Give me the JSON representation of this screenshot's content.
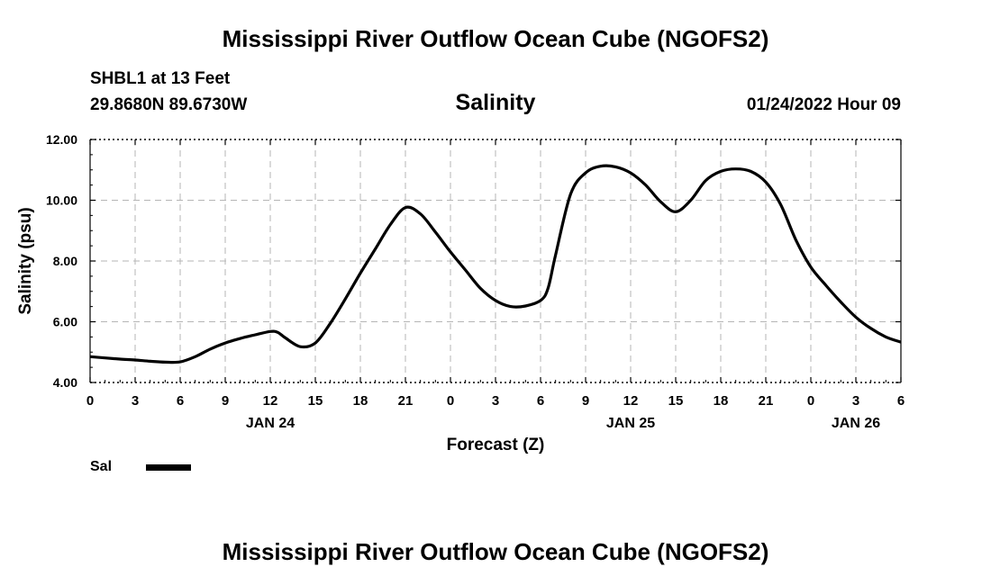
{
  "title_top": "Mississippi River Outflow Ocean Cube (NGOFS2)",
  "title_bottom": "Mississippi River Outflow Ocean Cube (NGOFS2)",
  "station": "SHBL1 at 13 Feet",
  "coordinates": "29.8680N  89.6730W",
  "parameter": "Salinity",
  "datetime": "01/24/2022 Hour 09",
  "legend": {
    "label": "Sal",
    "color": "#000000"
  },
  "chart_data": {
    "type": "line",
    "title": "Salinity",
    "xlabel": "Forecast (Z)",
    "ylabel": "Salinity (psu)",
    "xlim": [
      0,
      54
    ],
    "ylim": [
      4,
      12
    ],
    "y_ticks": [
      "4.00",
      "6.00",
      "8.00",
      "10.00",
      "12.00"
    ],
    "y_tick_values": [
      4,
      6,
      8,
      10,
      12
    ],
    "x_ticks": [
      0,
      3,
      6,
      9,
      12,
      15,
      18,
      21,
      24,
      27,
      30,
      33,
      36,
      39,
      42,
      45,
      48,
      51,
      54
    ],
    "x_tick_labels": [
      "0",
      "3",
      "6",
      "9",
      "12",
      "15",
      "18",
      "21",
      "0",
      "3",
      "6",
      "9",
      "12",
      "15",
      "18",
      "21",
      "0",
      "3",
      "6"
    ],
    "date_labels": [
      {
        "hour": 12,
        "label": "JAN 24"
      },
      {
        "hour": 36,
        "label": "JAN 25"
      },
      {
        "hour": 51,
        "label": "JAN 26"
      }
    ],
    "grid": true,
    "series": [
      {
        "name": "Sal",
        "x": [
          0,
          1,
          2,
          3,
          4,
          5,
          6,
          7,
          8,
          9,
          10,
          11,
          12,
          12.5,
          13,
          14,
          15,
          16,
          17,
          18,
          19,
          20,
          21,
          22,
          23,
          24,
          25,
          26,
          27,
          28,
          29,
          30,
          30.5,
          31,
          32,
          33,
          34,
          35,
          36,
          37,
          38,
          39,
          40,
          41,
          42,
          43,
          44,
          45,
          46,
          47,
          48,
          49,
          50,
          51,
          52,
          53,
          54
        ],
        "y": [
          4.85,
          4.81,
          4.77,
          4.74,
          4.7,
          4.67,
          4.68,
          4.85,
          5.1,
          5.3,
          5.45,
          5.57,
          5.68,
          5.65,
          5.47,
          5.18,
          5.3,
          5.95,
          6.75,
          7.6,
          8.4,
          9.2,
          9.76,
          9.55,
          8.95,
          8.3,
          7.7,
          7.1,
          6.7,
          6.5,
          6.52,
          6.7,
          7.1,
          8.2,
          10.2,
          10.9,
          11.12,
          11.1,
          10.9,
          10.5,
          9.95,
          9.62,
          10.0,
          10.65,
          10.95,
          11.03,
          10.95,
          10.6,
          9.85,
          8.7,
          7.8,
          7.2,
          6.65,
          6.15,
          5.78,
          5.5,
          5.33
        ]
      }
    ]
  }
}
